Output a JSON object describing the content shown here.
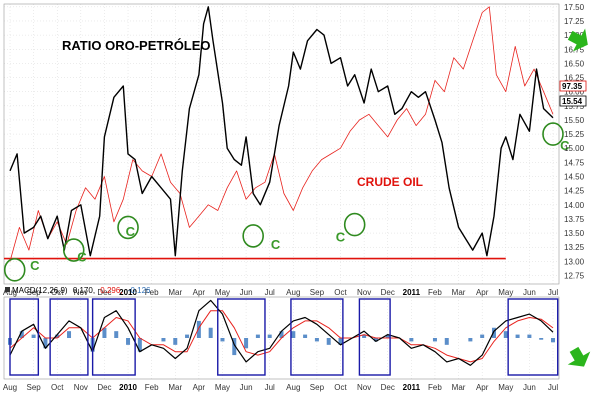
{
  "title": "RATIO ORO-PETRÓLEO",
  "crude_label": "CRUDE OIL",
  "macd_legend": {
    "name": "MACD(12,26,9)",
    "v1": "0.170,",
    "v2": "0.296,",
    "v3": "-0.126"
  },
  "colors": {
    "ratio": "#000000",
    "crude": "#e8231e",
    "macd_hist": "#5b8ec9",
    "support": "#e0120c",
    "circle": "#2f8a1f",
    "box": "#1a1aa8",
    "arrow": "#2bb51c"
  },
  "chart_data": [
    {
      "type": "line",
      "title": "RATIO ORO-PETRÓLEO",
      "x_labels": [
        "Aug",
        "Sep",
        "Oct",
        "Nov",
        "Dec",
        "2010",
        "Feb",
        "Mar",
        "Apr",
        "May",
        "Jun",
        "Jul",
        "Aug",
        "Sep",
        "Oct",
        "Nov",
        "Dec",
        "2011",
        "Feb",
        "Mar",
        "Apr",
        "May",
        "Jun",
        "Jul"
      ],
      "y_ticks": [
        "17.50",
        "17.25",
        "17.00",
        "16.75",
        "16.50",
        "16.25",
        "16.00",
        "15.75",
        "15.50",
        "15.25",
        "15.00",
        "14.75",
        "14.50",
        "14.25",
        "14.00",
        "13.75",
        "13.50",
        "13.25",
        "13.00",
        "12.75"
      ],
      "ylim": [
        12.6,
        17.55
      ],
      "last_value_labels": [
        "97.35",
        "15.54"
      ],
      "series": [
        {
          "name": "",
          "x": [
            0,
            0.3,
            0.6,
            1,
            1.3,
            1.6,
            2,
            2.3,
            2.6,
            3,
            3.4,
            3.8,
            4,
            4.4,
            4.8,
            5,
            5.3,
            5.6,
            6,
            6.4,
            6.8,
            7,
            7.3,
            7.6,
            8,
            8.2,
            8.4,
            8.6,
            9,
            9.2,
            9.5,
            9.8,
            10,
            10.3,
            10.6,
            11,
            11.4,
            11.8,
            12,
            12.3,
            12.6,
            13,
            13.3,
            13.6,
            14,
            14.3,
            14.6,
            15,
            15.3,
            15.6,
            16,
            16.3,
            16.6,
            17,
            17.3,
            17.6,
            18,
            18.3,
            18.6,
            19,
            19.3,
            19.6,
            20,
            20.2,
            20.5,
            20.8,
            21,
            21.3,
            21.6,
            22,
            22.3,
            22.6,
            23
          ],
          "values": [
            14.6,
            14.9,
            13.5,
            13.6,
            13.8,
            13.4,
            13.8,
            13.2,
            13.9,
            14.0,
            13.1,
            13.8,
            15.2,
            15.9,
            16.1,
            14.9,
            14.8,
            14.2,
            14.5,
            14.3,
            14.1,
            13.1,
            14.6,
            15.7,
            16.3,
            17.2,
            17.5,
            16.9,
            15.8,
            15.0,
            14.8,
            14.7,
            15.2,
            14.2,
            14.0,
            14.4,
            15.4,
            16.1,
            16.7,
            16.4,
            16.9,
            17.1,
            17.0,
            16.5,
            16.6,
            16.1,
            16.3,
            15.8,
            16.4,
            16.0,
            16.1,
            15.6,
            15.7,
            16.0,
            15.9,
            16.0,
            15.5,
            15.1,
            14.3,
            13.6,
            13.4,
            13.2,
            13.5,
            13.1,
            13.8,
            15.0,
            15.2,
            14.8,
            15.6,
            15.3,
            16.4,
            15.7,
            15.54
          ]
        },
        {
          "name": "CRUDE OIL",
          "x": [
            0,
            0.4,
            0.8,
            1.2,
            1.6,
            2,
            2.4,
            2.8,
            3.2,
            3.6,
            4,
            4.4,
            4.8,
            5.2,
            5.6,
            6,
            6.4,
            6.8,
            7.2,
            7.6,
            8,
            8.4,
            8.8,
            9.2,
            9.6,
            10,
            10.4,
            10.8,
            11.2,
            11.6,
            12,
            12.4,
            12.8,
            13.2,
            13.6,
            14,
            14.4,
            14.8,
            15.2,
            15.6,
            16,
            16.4,
            16.8,
            17.2,
            17.6,
            18,
            18.4,
            18.8,
            19.2,
            19.6,
            20,
            20.3,
            20.6,
            21,
            21.4,
            21.8,
            22.2,
            22.6,
            23
          ],
          "values": [
            13.0,
            13.6,
            13.2,
            13.9,
            13.4,
            13.7,
            13.3,
            13.9,
            14.3,
            14.1,
            14.5,
            13.7,
            14.1,
            14.8,
            14.6,
            14.5,
            14.9,
            14.4,
            14.2,
            13.6,
            13.8,
            14.0,
            13.9,
            14.3,
            14.6,
            14.1,
            14.3,
            14.4,
            14.9,
            14.2,
            13.9,
            14.3,
            14.6,
            14.8,
            14.9,
            15.0,
            15.3,
            15.5,
            15.6,
            15.4,
            15.2,
            15.5,
            15.7,
            15.4,
            15.6,
            16.2,
            16.0,
            16.6,
            16.4,
            16.9,
            17.4,
            17.5,
            16.3,
            16.0,
            16.8,
            16.1,
            16.4,
            16.0,
            15.6
          ]
        }
      ],
      "annotations": {
        "c_labels": [
          "C",
          "C",
          "C",
          "C",
          "C",
          "C",
          "C"
        ],
        "circled_lows": [
          {
            "x": 0.2,
            "y": 12.85
          },
          {
            "x": 2.7,
            "y": 13.2
          },
          {
            "x": 5.0,
            "y": 13.6
          },
          {
            "x": 10.3,
            "y": 13.45
          },
          {
            "x": 14.6,
            "y": 13.65
          },
          {
            "x": 23.0,
            "y": 15.25
          }
        ],
        "support_level": 13.05
      }
    },
    {
      "type": "line",
      "title": "MACD(12,26,9)",
      "x_labels": [
        "Aug",
        "Sep",
        "Oct",
        "Nov",
        "Dec",
        "2010",
        "Feb",
        "Mar",
        "Apr",
        "May",
        "Jun",
        "Jul",
        "Aug",
        "Sep",
        "Oct",
        "Nov",
        "Dec",
        "2011",
        "Feb",
        "Mar",
        "Apr",
        "May",
        "Jun",
        "Jul"
      ],
      "ylim": [
        -1.2,
        1.2
      ],
      "series": [
        {
          "name": "MACD",
          "x": [
            0,
            0.5,
            1,
            1.5,
            2,
            2.5,
            3,
            3.5,
            4,
            4.5,
            5,
            5.5,
            6,
            6.5,
            7,
            7.5,
            8,
            8.5,
            9,
            9.5,
            10,
            10.5,
            11,
            11.5,
            12,
            12.5,
            13,
            13.5,
            14,
            14.5,
            15,
            15.5,
            16,
            16.5,
            17,
            17.5,
            18,
            18.5,
            19,
            19.5,
            20,
            20.5,
            21,
            21.5,
            22,
            22.5,
            23
          ],
          "values": [
            -0.5,
            0.2,
            0.4,
            -0.3,
            0.1,
            0.5,
            0.3,
            -0.4,
            0.6,
            0.8,
            0.3,
            -0.4,
            -0.2,
            -0.3,
            -0.6,
            -0.3,
            0.8,
            1.1,
            0.7,
            -0.2,
            -0.7,
            -0.4,
            -0.3,
            0.2,
            0.5,
            0.6,
            0.4,
            0.1,
            -0.2,
            0.0,
            0.2,
            -0.1,
            0.1,
            0.0,
            -0.3,
            -0.2,
            -0.4,
            -0.7,
            -0.6,
            -0.8,
            -0.5,
            0.2,
            0.5,
            0.6,
            0.7,
            0.5,
            0.17
          ]
        },
        {
          "name": "Signal",
          "x": [
            0,
            0.5,
            1,
            1.5,
            2,
            2.5,
            3,
            3.5,
            4,
            4.5,
            5,
            5.5,
            6,
            6.5,
            7,
            7.5,
            8,
            8.5,
            9,
            9.5,
            10,
            10.5,
            11,
            11.5,
            12,
            12.5,
            13,
            13.5,
            14,
            14.5,
            15,
            15.5,
            16,
            16.5,
            17,
            17.5,
            18,
            18.5,
            19,
            19.5,
            20,
            20.5,
            21,
            21.5,
            22,
            22.5,
            23
          ],
          "values": [
            -0.3,
            0.0,
            0.3,
            0.0,
            0.0,
            0.3,
            0.3,
            0.0,
            0.3,
            0.6,
            0.5,
            0.0,
            -0.2,
            -0.2,
            -0.4,
            -0.4,
            0.3,
            0.8,
            0.8,
            0.3,
            -0.4,
            -0.5,
            -0.4,
            0.0,
            0.3,
            0.5,
            0.5,
            0.3,
            0.0,
            0.0,
            0.1,
            0.0,
            0.0,
            0.0,
            -0.2,
            -0.2,
            -0.3,
            -0.5,
            -0.6,
            -0.7,
            -0.6,
            -0.1,
            0.3,
            0.5,
            0.6,
            0.55,
            0.296
          ]
        },
        {
          "name": "Histogram",
          "x": [
            0,
            0.5,
            1,
            1.5,
            2,
            2.5,
            3,
            3.5,
            4,
            4.5,
            5,
            5.5,
            6,
            6.5,
            7,
            7.5,
            8,
            8.5,
            9,
            9.5,
            10,
            10.5,
            11,
            11.5,
            12,
            12.5,
            13,
            13.5,
            14,
            14.5,
            15,
            15.5,
            16,
            16.5,
            17,
            17.5,
            18,
            18.5,
            19,
            19.5,
            20,
            20.5,
            21,
            21.5,
            22,
            22.5,
            23
          ],
          "values": [
            -0.2,
            0.2,
            0.1,
            -0.3,
            0.1,
            0.2,
            0.0,
            -0.4,
            0.3,
            0.2,
            -0.2,
            -0.4,
            0.0,
            -0.1,
            -0.2,
            0.1,
            0.5,
            0.3,
            -0.1,
            -0.5,
            -0.3,
            0.1,
            0.1,
            0.2,
            0.2,
            0.1,
            -0.1,
            -0.2,
            -0.2,
            0.0,
            0.1,
            -0.1,
            0.1,
            0.0,
            -0.1,
            0.0,
            -0.1,
            -0.2,
            0.0,
            -0.1,
            0.1,
            0.3,
            0.2,
            0.1,
            0.1,
            -0.05,
            -0.126
          ]
        }
      ],
      "highlight_boxes": [
        [
          0,
          1.2
        ],
        [
          1.7,
          3.3
        ],
        [
          3.5,
          5.3
        ],
        [
          8.8,
          10.8
        ],
        [
          11.9,
          14.1
        ],
        [
          14.8,
          16.1
        ],
        [
          21.1,
          23.2
        ]
      ]
    }
  ]
}
